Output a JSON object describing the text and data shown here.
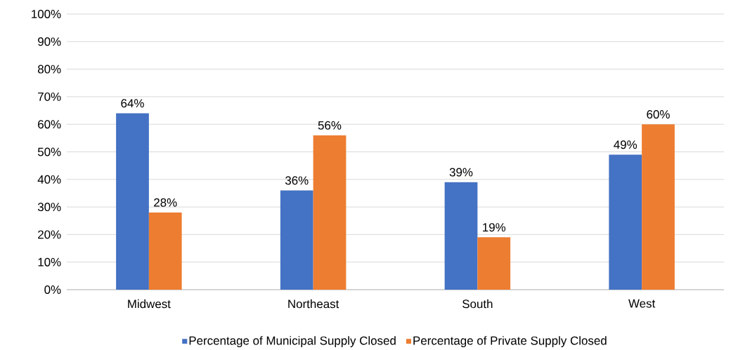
{
  "chart_data": {
    "type": "bar",
    "categories": [
      "Midwest",
      "Northeast",
      "South",
      "West"
    ],
    "series": [
      {
        "name": "Percentage of Municipal Supply Closed",
        "color": "#4472c4",
        "values": [
          64,
          36,
          39,
          49
        ],
        "value_labels": [
          "64%",
          "36%",
          "39%",
          "49%"
        ]
      },
      {
        "name": "Percentage of Private Supply Closed",
        "color": "#ed7d31",
        "values": [
          28,
          56,
          19,
          60
        ],
        "value_labels": [
          "28%",
          "56%",
          "19%",
          "60%"
        ]
      }
    ],
    "ylim": [
      0,
      100
    ],
    "yticks": [
      {
        "value": 0,
        "label": "0%"
      },
      {
        "value": 10,
        "label": "10%"
      },
      {
        "value": 20,
        "label": "20%"
      },
      {
        "value": 30,
        "label": "30%"
      },
      {
        "value": 40,
        "label": "40%"
      },
      {
        "value": 50,
        "label": "50%"
      },
      {
        "value": 60,
        "label": "60%"
      },
      {
        "value": 70,
        "label": "70%"
      },
      {
        "value": 80,
        "label": "80%"
      },
      {
        "value": 90,
        "label": "90%"
      },
      {
        "value": 100,
        "label": "100%"
      }
    ],
    "grid": "y",
    "legend": "bottom"
  }
}
